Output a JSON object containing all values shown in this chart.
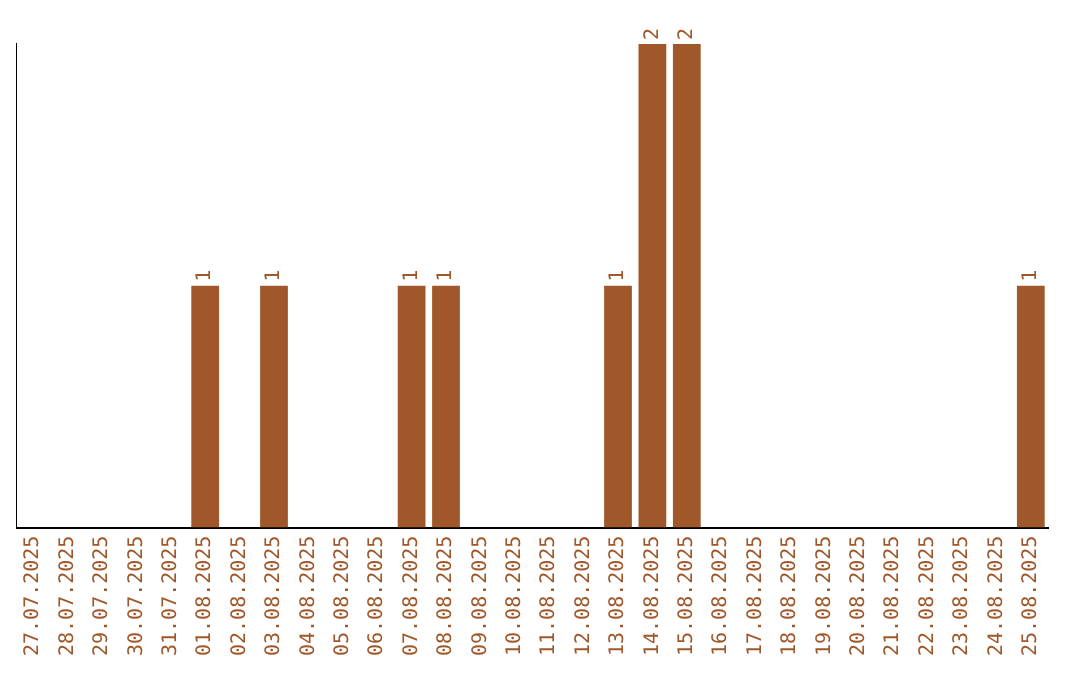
{
  "chart_data": {
    "type": "bar",
    "categories": [
      "27.07.2025",
      "28.07.2025",
      "29.07.2025",
      "30.07.2025",
      "31.07.2025",
      "01.08.2025",
      "02.08.2025",
      "03.08.2025",
      "04.08.2025",
      "05.08.2025",
      "06.08.2025",
      "07.08.2025",
      "08.08.2025",
      "09.08.2025",
      "10.08.2025",
      "11.08.2025",
      "12.08.2025",
      "13.08.2025",
      "14.08.2025",
      "15.08.2025",
      "16.08.2025",
      "17.08.2025",
      "18.08.2025",
      "19.08.2025",
      "20.08.2025",
      "21.08.2025",
      "22.08.2025",
      "23.08.2025",
      "24.08.2025",
      "25.08.2025"
    ],
    "values": [
      0,
      0,
      0,
      0,
      0,
      1,
      0,
      1,
      0,
      0,
      0,
      1,
      1,
      0,
      0,
      0,
      0,
      1,
      2,
      2,
      0,
      0,
      0,
      0,
      0,
      0,
      0,
      0,
      0,
      1
    ],
    "value_labels": [
      null,
      null,
      null,
      null,
      null,
      "1",
      null,
      "1",
      null,
      null,
      null,
      "1",
      "1",
      null,
      null,
      null,
      null,
      "1",
      "2",
      "2",
      null,
      null,
      null,
      null,
      null,
      null,
      null,
      null,
      null,
      "1"
    ],
    "color": "#a0582a",
    "tick_labels": "x",
    "grid": false,
    "legend": false
  }
}
